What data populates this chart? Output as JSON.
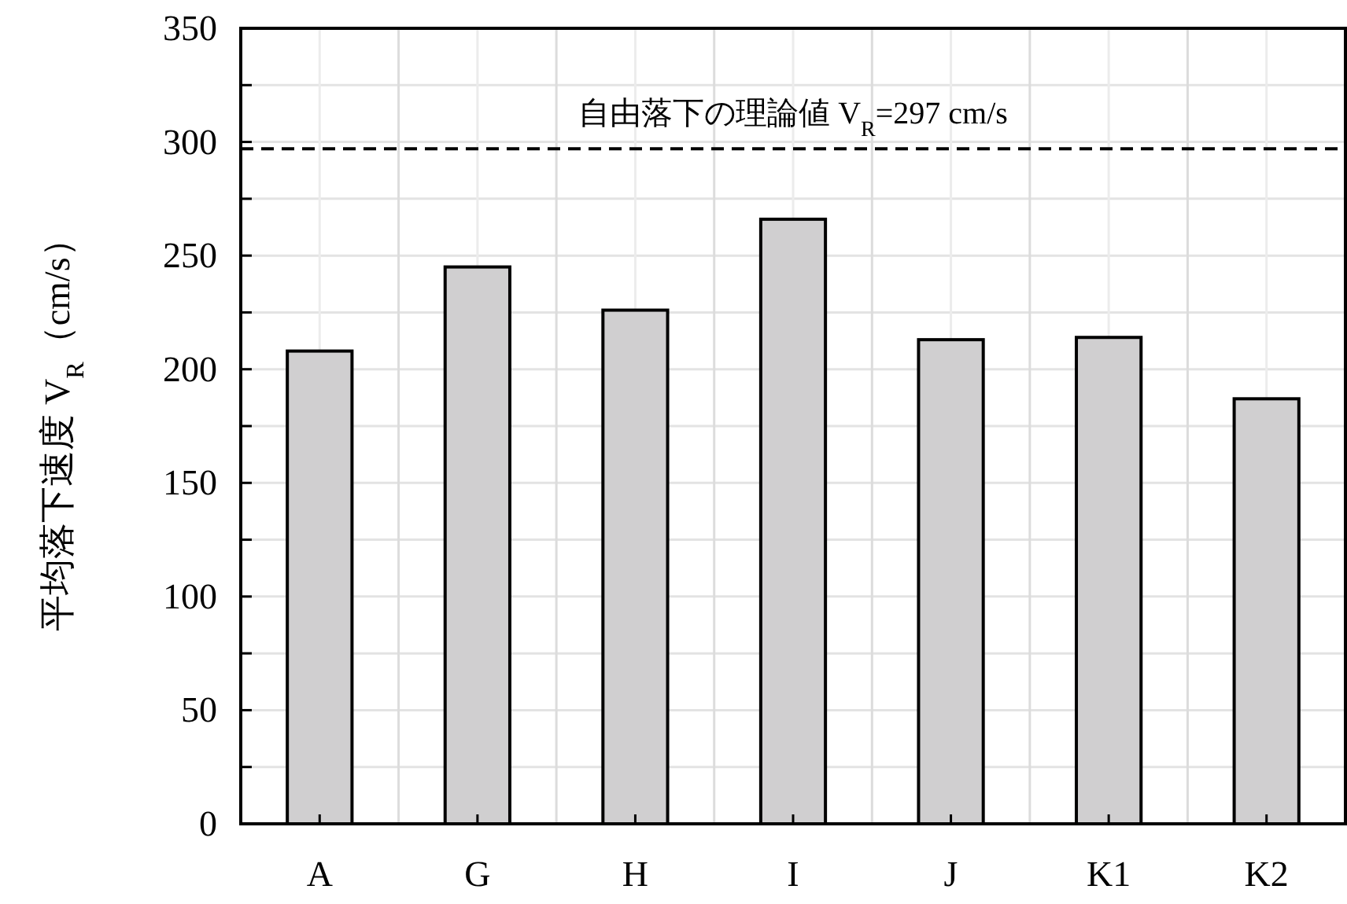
{
  "chart_data": {
    "type": "bar",
    "ylabel": "平均落下速度 V$_{R}$（cm/s）",
    "categories": [
      "A",
      "G",
      "H",
      "I",
      "J",
      "K1",
      "K2"
    ],
    "values": [
      208,
      245,
      226,
      266,
      213,
      214,
      187
    ],
    "color": "#d0cfd0",
    "ylim": [
      0,
      350
    ],
    "yticks": [
      0,
      {
        "value": 25,
        "label": null
      },
      50,
      {
        "value": 75,
        "label": null
      },
      100,
      {
        "value": 125,
        "label": null
      },
      150,
      {
        "value": 175,
        "label": null
      },
      200,
      {
        "value": 225,
        "label": null
      },
      250,
      {
        "value": 275,
        "label": null
      },
      300,
      {
        "value": 325,
        "label": null
      },
      350
    ],
    "grid": true,
    "ref_lines": [
      {
        "axis": "y",
        "value": 297,
        "label": "自由落下の理論値 V$_{R}$=297 cm/s",
        "color": "#000000",
        "line_style": "dashed"
      }
    ]
  }
}
